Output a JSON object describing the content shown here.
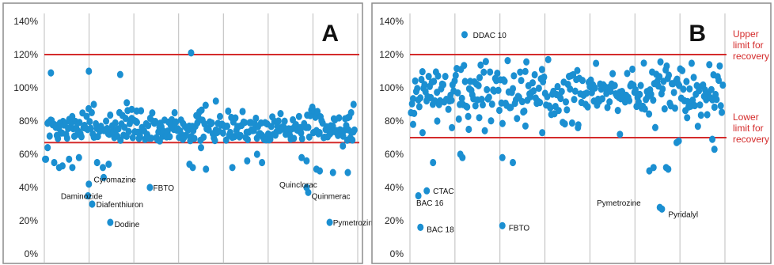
{
  "chart_data": [
    {
      "type": "scatter",
      "panel": "A",
      "ylim": [
        0,
        140
      ],
      "yticks": [
        "0%",
        "20%",
        "40%",
        "60%",
        "80%",
        "100%",
        "120%",
        "140%"
      ],
      "grid": "vertical",
      "limits": [
        120,
        67
      ],
      "bulk": {
        "count": 300,
        "seed": 7,
        "mean": 76,
        "spread": 5
      },
      "points": [
        [
          1,
          57
        ],
        [
          2,
          57
        ],
        [
          4,
          64
        ],
        [
          8,
          109
        ],
        [
          12,
          55
        ],
        [
          18,
          52
        ],
        [
          22,
          53
        ],
        [
          30,
          57
        ],
        [
          34,
          52
        ],
        [
          42,
          58
        ],
        [
          54,
          110
        ],
        [
          60,
          90
        ],
        [
          64,
          55
        ],
        [
          71,
          52
        ],
        [
          78,
          54
        ],
        [
          92,
          108
        ],
        [
          100,
          91
        ],
        [
          106,
          87
        ],
        [
          112,
          86
        ],
        [
          124,
          70
        ],
        [
          140,
          68
        ],
        [
          158,
          85
        ],
        [
          168,
          69
        ],
        [
          178,
          121
        ],
        [
          176,
          54
        ],
        [
          180,
          52
        ],
        [
          190,
          64
        ],
        [
          196,
          51
        ],
        [
          208,
          92
        ],
        [
          228,
          52
        ],
        [
          234,
          72
        ],
        [
          246,
          56
        ],
        [
          258,
          60
        ],
        [
          264,
          55
        ],
        [
          312,
          58
        ],
        [
          318,
          56
        ],
        [
          330,
          51
        ],
        [
          334,
          50
        ],
        [
          350,
          49
        ],
        [
          368,
          49
        ],
        [
          375,
          90
        ],
        [
          368,
          82
        ],
        [
          372,
          85
        ],
        [
          362,
          65
        ],
        [
          54,
          42
        ],
        [
          53,
          35
        ],
        [
          58,
          30
        ],
        [
          72,
          46
        ],
        [
          80,
          19
        ],
        [
          128,
          40
        ],
        [
          318,
          40
        ],
        [
          320,
          37
        ],
        [
          346,
          19
        ]
      ],
      "labels": [
        {
          "text": "Cyromazine",
          "x": 60,
          "y": 45
        },
        {
          "text": "Daminozide",
          "x": 20,
          "y": 35
        },
        {
          "text": "Diafenthiuron",
          "x": 63,
          "y": 30
        },
        {
          "text": "FBTO",
          "x": 132,
          "y": 40
        },
        {
          "text": "Dodine",
          "x": 85,
          "y": 18
        },
        {
          "text": "Quinclorac",
          "x": 285,
          "y": 42
        },
        {
          "text": "Quinmerac",
          "x": 324,
          "y": 35
        },
        {
          "text": "Pymetrozine",
          "x": 350,
          "y": 19
        }
      ],
      "xlim": [
        0,
        380
      ]
    },
    {
      "type": "scatter",
      "panel": "B",
      "ylim": [
        0,
        140
      ],
      "yticks": [
        "0%",
        "20%",
        "40%",
        "60%",
        "80%",
        "100%",
        "120%",
        "140%"
      ],
      "grid": "vertical",
      "limits": [
        120,
        70
      ],
      "limit_labels": [
        {
          "lines": [
            "Upper",
            "limit for",
            "recovery"
          ]
        },
        {
          "lines": [
            "Lower",
            "limit for",
            "recovery"
          ]
        }
      ],
      "bulk": {
        "count": 300,
        "seed": 19,
        "mean": 98,
        "spread": 9
      },
      "points": [
        [
          1,
          85
        ],
        [
          3,
          78
        ],
        [
          12,
          73
        ],
        [
          22,
          55
        ],
        [
          26,
          80
        ],
        [
          40,
          76
        ],
        [
          48,
          60
        ],
        [
          50,
          58
        ],
        [
          56,
          75
        ],
        [
          66,
          82
        ],
        [
          88,
          58
        ],
        [
          98,
          55
        ],
        [
          110,
          77
        ],
        [
          126,
          73
        ],
        [
          160,
          76
        ],
        [
          200,
          72
        ],
        [
          228,
          50
        ],
        [
          232,
          52
        ],
        [
          244,
          52
        ],
        [
          246,
          51
        ],
        [
          254,
          67
        ],
        [
          256,
          68
        ],
        [
          264,
          82
        ],
        [
          288,
          69
        ],
        [
          290,
          63
        ],
        [
          52,
          132
        ],
        [
          8,
          35
        ],
        [
          10,
          16
        ],
        [
          16,
          38
        ],
        [
          88,
          17
        ],
        [
          238,
          28
        ],
        [
          240,
          27
        ]
      ],
      "labels": [
        {
          "text": "DDAC 10",
          "x": 60,
          "y": 132
        },
        {
          "text": "CTAC",
          "x": 22,
          "y": 38
        },
        {
          "text": "BAC 16",
          "x": 6,
          "y": 31
        },
        {
          "text": "BAC 18",
          "x": 16,
          "y": 15
        },
        {
          "text": "FBTO",
          "x": 94,
          "y": 16
        },
        {
          "text": "Pymetrozine",
          "x": 178,
          "y": 31
        },
        {
          "text": "Pyridalyl",
          "x": 246,
          "y": 24
        }
      ],
      "xlim": [
        0,
        300
      ]
    }
  ],
  "colors": {
    "point": "#1b8fd1",
    "limit": "#d42b2b",
    "grid": "#bcbcbc",
    "frame": "#8c8c8c",
    "text": "#111111"
  }
}
